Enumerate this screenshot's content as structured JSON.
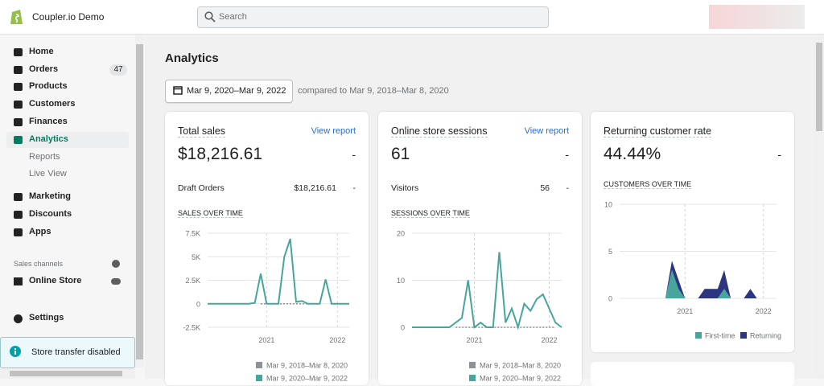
{
  "store": "Coupler.io Demo",
  "search_placeholder": "Search",
  "nav": [
    {
      "label": "Home"
    },
    {
      "label": "Orders",
      "badge": 47
    },
    {
      "label": "Products"
    },
    {
      "label": "Customers"
    },
    {
      "label": "Finances"
    },
    {
      "label": "Analytics",
      "active": true
    },
    {
      "label": "Reports",
      "sub": true
    },
    {
      "label": "Live View",
      "sub": true
    },
    {
      "label": "Marketing"
    },
    {
      "label": "Discounts"
    },
    {
      "label": "Apps"
    }
  ],
  "sales_channels": "Sales channels",
  "online_store": "Online Store",
  "settings": "Settings",
  "store_transfer": "Store transfer disabled",
  "page_title": "Analytics",
  "date_range": "Mar 9, 2020–Mar 9, 2022",
  "compared": "compared to Mar 9, 2018–Mar 8, 2020",
  "cards": [
    {
      "title": "Total sales",
      "link": "View report",
      "value": "$18,216.61",
      "change": "-",
      "row": {
        "label": "Draft Orders",
        "value": "$18,216.61",
        "change": "-"
      },
      "chart": {
        "type": "line",
        "title": "SALES OVER TIME",
        "xlim": [
          0,
          24
        ],
        "xticks": [
          {
            "value": 10,
            "label": "2021"
          },
          {
            "value": 22,
            "label": "2022"
          }
        ],
        "ylim": [
          -2500,
          7500
        ],
        "yticks": [
          {
            "value": 7500,
            "label": "7.5K"
          },
          {
            "value": 5000,
            "label": "5K"
          },
          {
            "value": 2500,
            "label": "2.5K"
          },
          0,
          {
            "value": -2500,
            "label": "-2.5K"
          }
        ],
        "series": [
          {
            "name": "Mar 9, 2018–Mar 8, 2020",
            "color": "#8c9196",
            "dashed": true,
            "values": [
              null,
              null,
              null,
              null,
              null,
              null,
              null,
              null,
              null,
              0,
              0,
              0,
              0,
              0,
              0,
              0,
              0,
              0,
              0,
              0,
              null,
              null,
              null,
              null,
              null
            ]
          },
          {
            "name": "Mar 9, 2020–Mar 9, 2022",
            "color": "#47a69c",
            "values": [
              0,
              0,
              0,
              0,
              0,
              0,
              0,
              0,
              100,
              3200,
              0,
              0,
              0,
              5000,
              6900,
              200,
              300,
              0,
              0,
              0,
              2600,
              0,
              0,
              0,
              0
            ]
          }
        ]
      }
    },
    {
      "title": "Online store sessions",
      "link": "View report",
      "value": "61",
      "change": "-",
      "row": {
        "label": "Visitors",
        "value": "56",
        "change": "-"
      },
      "chart": {
        "type": "line",
        "title": "SESSIONS OVER TIME",
        "xlim": [
          0,
          24
        ],
        "xticks": [
          {
            "value": 10,
            "label": "2021"
          },
          {
            "value": 22,
            "label": "2022"
          }
        ],
        "ylim": [
          0,
          20
        ],
        "yticks": [
          20,
          10,
          0
        ],
        "series": [
          {
            "name": "Mar 9, 2018–Mar 8, 2020",
            "color": "#8c9196",
            "dashed": true,
            "values": [
              null,
              null,
              null,
              null,
              null,
              null,
              null,
              0,
              0,
              0,
              0,
              0,
              0,
              0,
              0,
              0,
              0,
              0,
              0,
              0,
              0,
              0,
              0,
              0,
              null
            ]
          },
          {
            "name": "Mar 9, 2020–Mar 9, 2022",
            "color": "#47a69c",
            "values": [
              0,
              0,
              0,
              0,
              0,
              0,
              0,
              1,
              2,
              10,
              0,
              1,
              0,
              0,
              16,
              1,
              4,
              0,
              5,
              3.5,
              6,
              7,
              4,
              1,
              0
            ]
          }
        ]
      }
    },
    {
      "title": "Returning customer rate",
      "value": "44.44%",
      "change": "-",
      "chart": {
        "type": "area",
        "title": "CUSTOMERS OVER TIME",
        "xlim": [
          0,
          24
        ],
        "xticks": [
          {
            "value": 10,
            "label": "2021"
          },
          {
            "value": 22,
            "label": "2022"
          }
        ],
        "ylim": [
          0,
          10
        ],
        "yticks": [
          10,
          5,
          0
        ],
        "series": [
          {
            "name": "First-time",
            "color": "#47a69c",
            "values": [
              0,
              0,
              0,
              0,
              0,
              0,
              0,
              0,
              3,
              1,
              0,
              0,
              0,
              0,
              0,
              0,
              1,
              0,
              0,
              0,
              0,
              0,
              0,
              0,
              0
            ]
          },
          {
            "name": "Returning",
            "color": "#2c3580",
            "values": [
              0,
              0,
              0,
              0,
              0,
              0,
              0,
              0,
              1,
              1,
              0,
              0,
              0,
              1,
              1,
              1,
              2,
              0,
              0,
              0,
              1,
              0,
              0,
              0,
              0
            ]
          }
        ]
      }
    }
  ]
}
